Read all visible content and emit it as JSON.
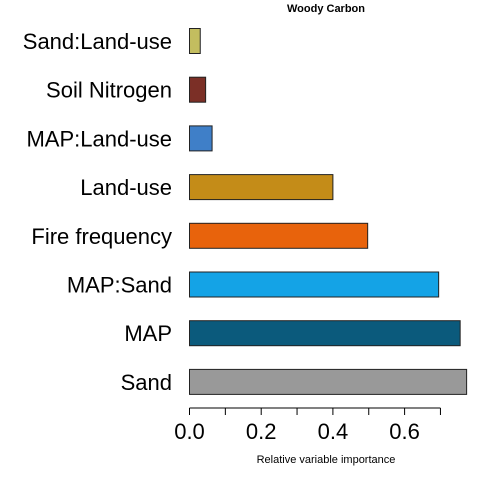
{
  "chart_data": {
    "type": "bar",
    "orientation": "horizontal",
    "title": "Woody Carbon",
    "xlabel": "Relative variable importance",
    "ylabel": "",
    "xlim": [
      0,
      0.77
    ],
    "xticks": [
      0.0,
      0.1,
      0.2,
      0.3,
      0.4,
      0.5,
      0.6,
      0.7
    ],
    "xtick_labels": [
      "0.0",
      "",
      "0.2",
      "",
      "0.4",
      "",
      "0.6",
      ""
    ],
    "grid": false,
    "legend": "none",
    "bars": [
      {
        "label": "Sand:Land-use",
        "value": 0.03,
        "color": "#c3bd5f"
      },
      {
        "label": "Soil Nitrogen",
        "value": 0.045,
        "color": "#7b2f26"
      },
      {
        "label": "MAP:Land-use",
        "value": 0.063,
        "color": "#3f7fc8"
      },
      {
        "label": "Land-use",
        "value": 0.4,
        "color": "#c48c18"
      },
      {
        "label": "Fire frequency",
        "value": 0.497,
        "color": "#e8630c"
      },
      {
        "label": "MAP:Sand",
        "value": 0.695,
        "color": "#14a3e6"
      },
      {
        "label": "MAP",
        "value": 0.755,
        "color": "#0b5a7c"
      },
      {
        "label": "Sand",
        "value": 0.773,
        "color": "#999999"
      }
    ]
  }
}
